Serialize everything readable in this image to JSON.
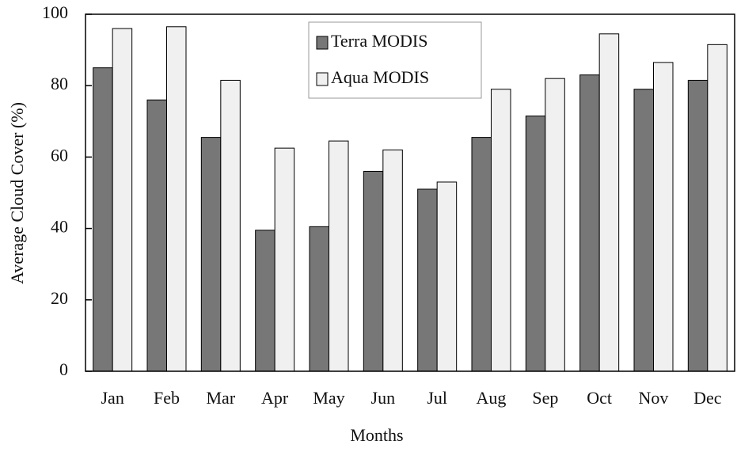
{
  "chart_data": {
    "type": "bar",
    "x_label": "Months",
    "y_label": "Average Cloud Cover  (%)",
    "categories": [
      "Jan",
      "Feb",
      "Mar",
      "Apr",
      "May",
      "Jun",
      "Jul",
      "Aug",
      "Sep",
      "Oct",
      "Nov",
      "Dec"
    ],
    "series": [
      {
        "name": "Terra MODIS",
        "color": "#777777",
        "values": [
          85,
          76,
          65.5,
          39.5,
          40.5,
          56,
          51,
          65.5,
          71.5,
          83,
          79,
          81.5
        ]
      },
      {
        "name": "Aqua MODIS",
        "color": "#f0f0f0",
        "values": [
          96,
          96.5,
          81.5,
          62.5,
          64.5,
          62,
          53,
          79,
          82,
          94.5,
          86.5,
          91.5
        ]
      }
    ],
    "ylim": [
      0,
      100
    ],
    "yticks": [
      0,
      20,
      40,
      60,
      80,
      100
    ],
    "legend": "top"
  }
}
